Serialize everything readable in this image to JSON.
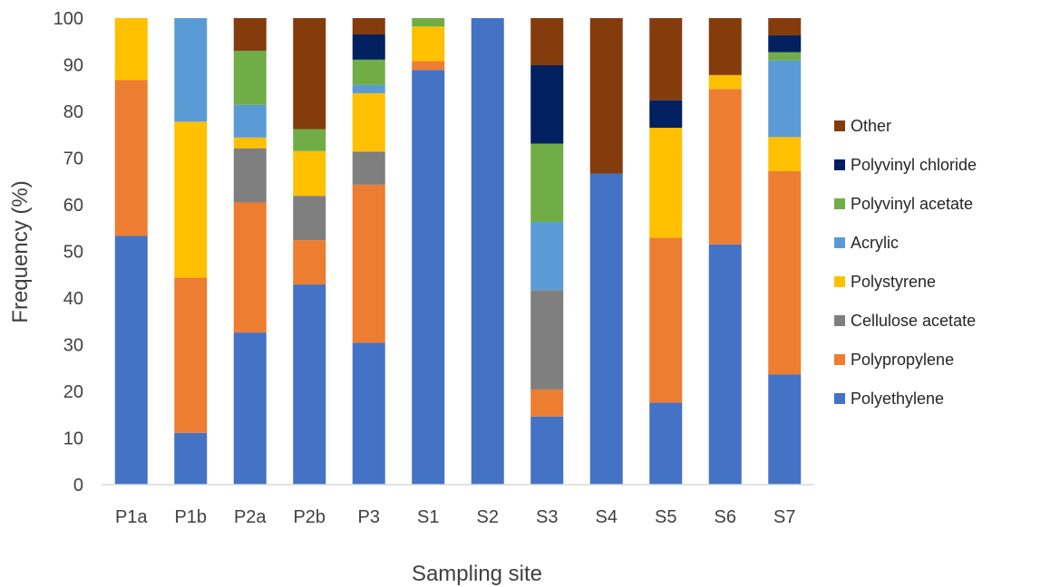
{
  "chart_data": {
    "type": "bar",
    "stacked": true,
    "xlabel": "Sampling site",
    "ylabel": "Frequency (%)",
    "ylim": [
      0,
      100
    ],
    "yticks": [
      0,
      10,
      20,
      30,
      40,
      50,
      60,
      70,
      80,
      90,
      100
    ],
    "grid": false,
    "legend_position": "right",
    "categories": [
      "P1a",
      "P1b",
      "P2a",
      "P2b",
      "P3",
      "S1",
      "S2",
      "S3",
      "S4",
      "S5",
      "S6",
      "S7"
    ],
    "series": [
      {
        "name": "Polyethylene",
        "color": "#4472C4",
        "values": [
          53.3,
          11.1,
          32.6,
          42.9,
          30.4,
          88.9,
          100,
          14.6,
          66.7,
          17.6,
          51.5,
          23.6
        ]
      },
      {
        "name": "Polypropylene",
        "color": "#ED7D31",
        "values": [
          33.4,
          33.3,
          27.9,
          9.5,
          33.9,
          1.9,
          0,
          5.8,
          0,
          35.3,
          33.3,
          43.6
        ]
      },
      {
        "name": "Cellulose acetate",
        "color": "#7F7F7F",
        "values": [
          0,
          0,
          11.6,
          9.5,
          7.1,
          0,
          0,
          21.3,
          0,
          0,
          0,
          0
        ]
      },
      {
        "name": "Polystyrene",
        "color": "#FFC000",
        "values": [
          13.3,
          33.4,
          2.3,
          9.6,
          12.5,
          7.4,
          0,
          0,
          0,
          23.6,
          3.0,
          7.3
        ]
      },
      {
        "name": "Acrylic",
        "color": "#5B9BD5",
        "values": [
          0,
          22.2,
          7.0,
          0,
          1.8,
          0,
          0,
          14.6,
          0,
          0,
          0,
          16.4
        ]
      },
      {
        "name": "Polyvinyl acetate",
        "color": "#70AD47",
        "values": [
          0,
          0,
          11.6,
          4.7,
          5.4,
          1.8,
          0,
          16.8,
          0,
          0,
          0,
          1.8
        ]
      },
      {
        "name": "Polyvinyl chloride",
        "color": "#002060",
        "values": [
          0,
          0,
          0,
          0,
          5.4,
          0,
          0,
          16.8,
          0,
          5.9,
          0,
          3.6
        ]
      },
      {
        "name": "Other",
        "color": "#843C0C",
        "values": [
          0,
          0,
          7.0,
          23.8,
          3.5,
          0,
          0,
          10.1,
          33.3,
          17.6,
          12.2,
          3.7
        ]
      }
    ]
  }
}
